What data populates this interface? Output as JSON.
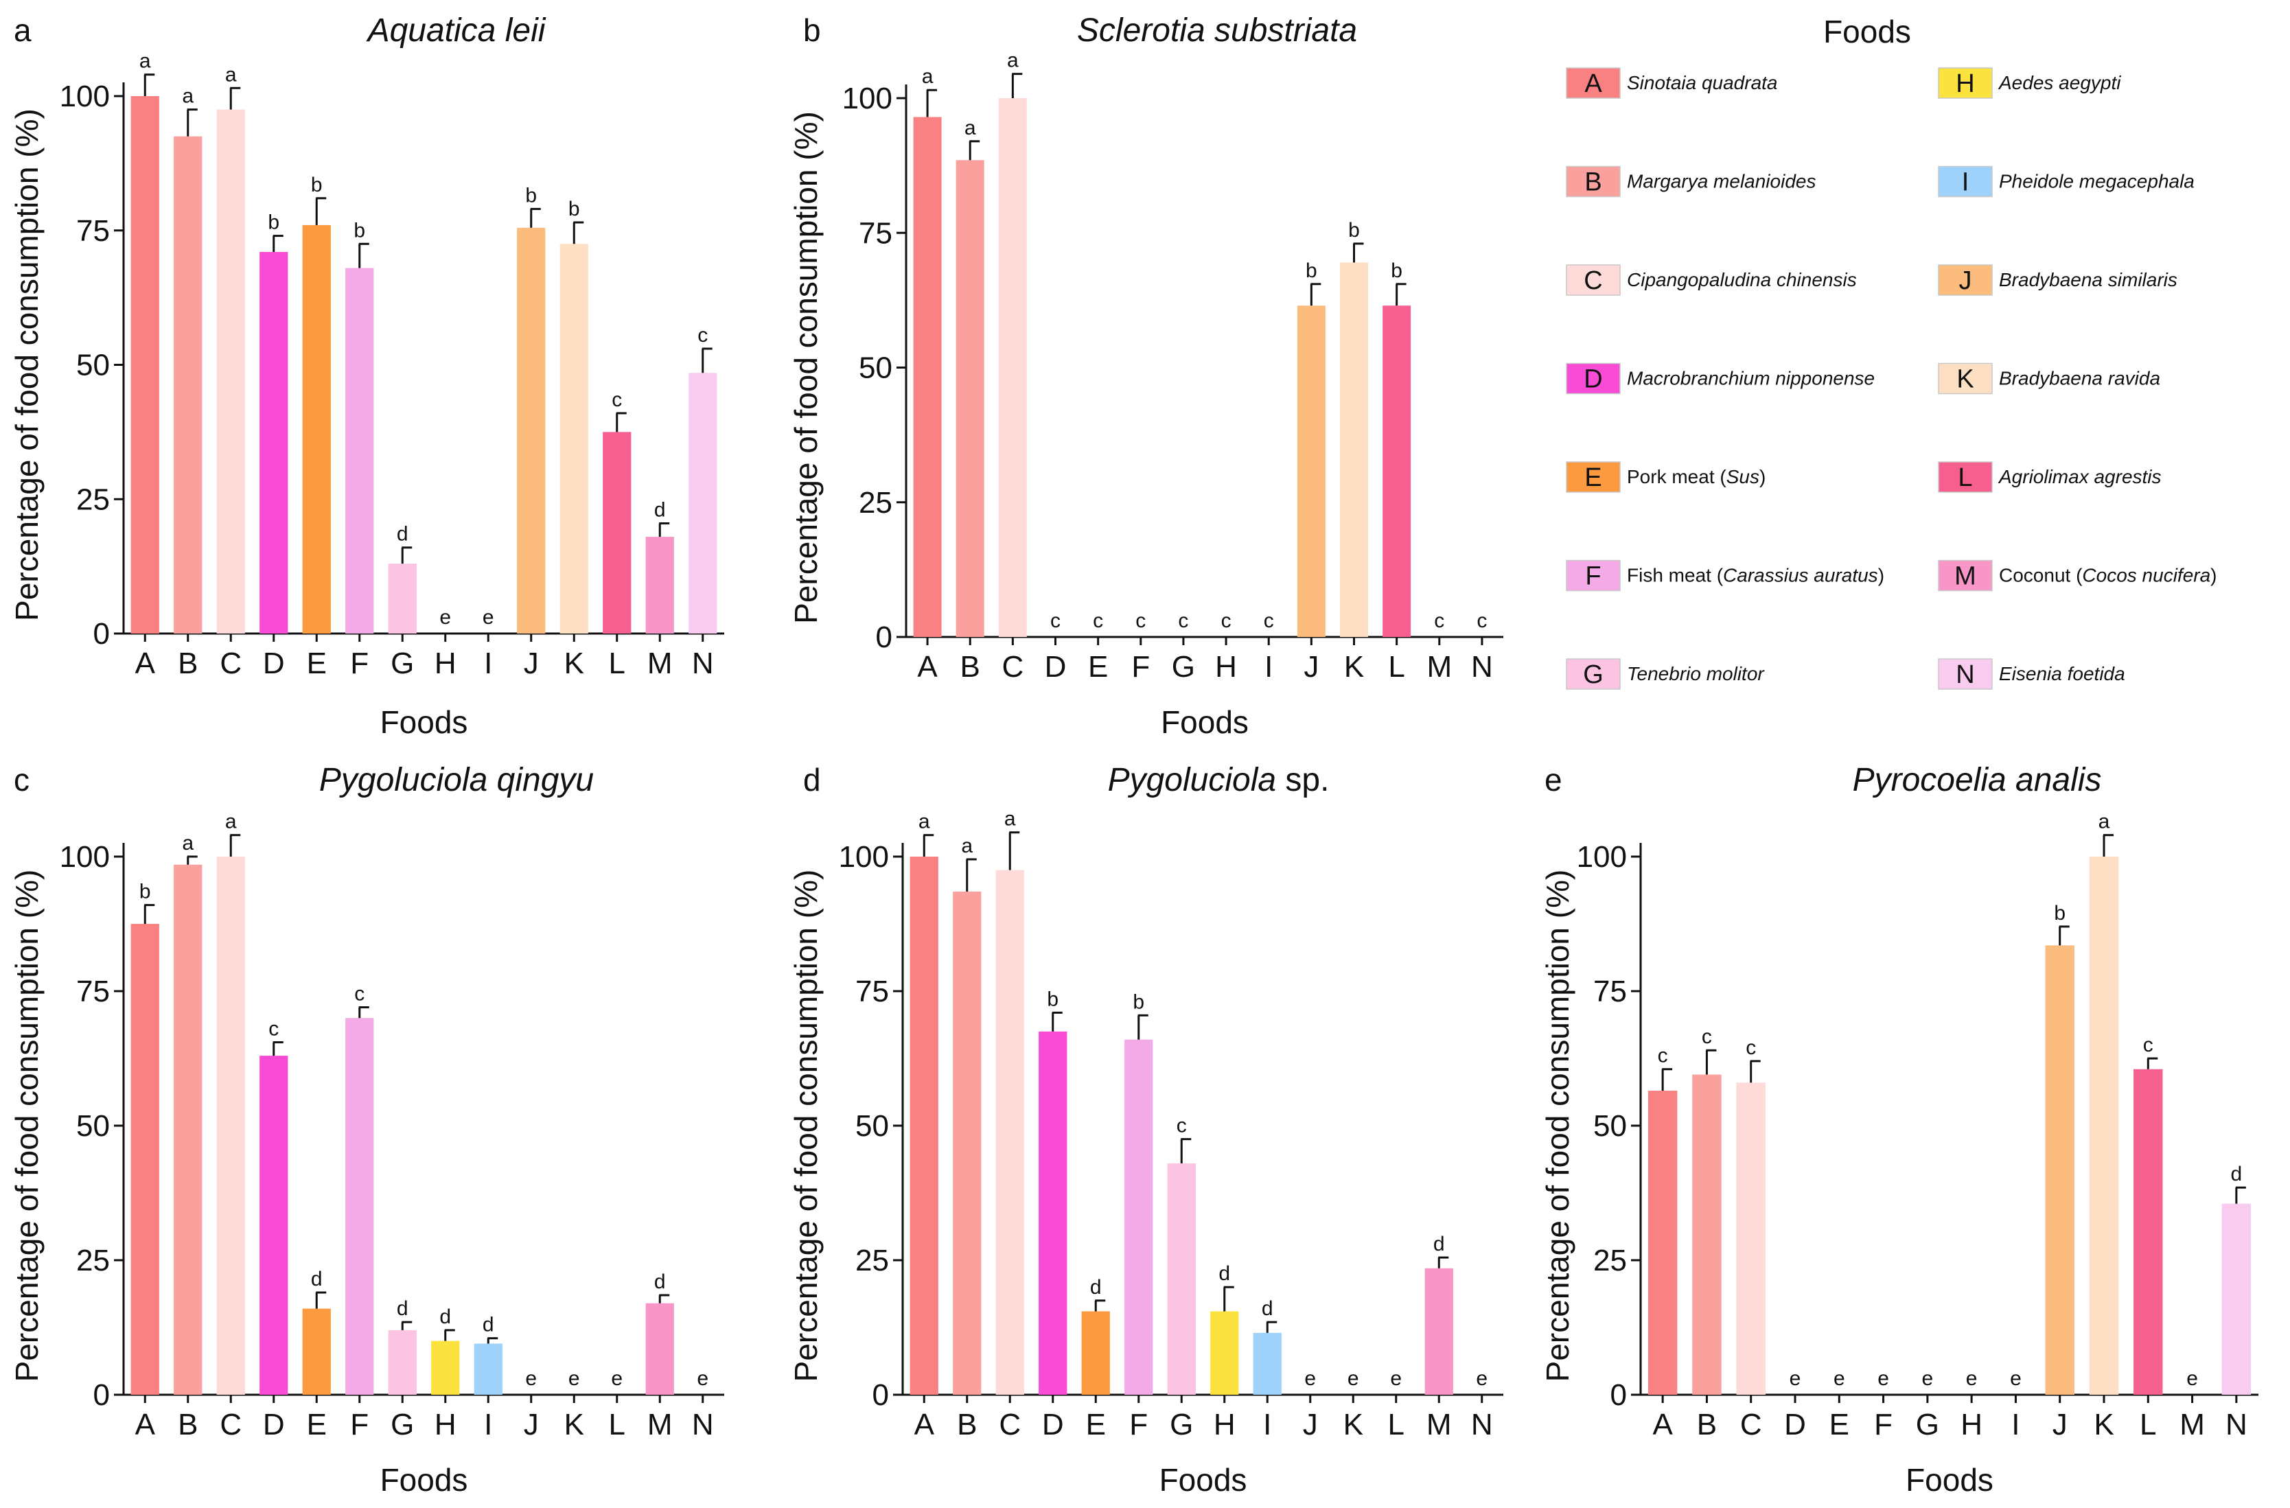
{
  "chart_data": [
    {
      "type": "bar",
      "panel": "a",
      "title": "Aquatica leii",
      "xlabel": "Foods",
      "ylabel": "Percentage of food consumption (%)",
      "ylim": [
        0,
        100
      ],
      "yticks": [
        "0",
        "25",
        "50",
        "75",
        "100"
      ],
      "categories": [
        "A",
        "B",
        "C",
        "D",
        "E",
        "F",
        "G",
        "H",
        "I",
        "J",
        "K",
        "L",
        "M",
        "N"
      ],
      "values": [
        100,
        92.5,
        97.5,
        71,
        76,
        68,
        13,
        0,
        0,
        75.5,
        72.5,
        37.5,
        18,
        48.5
      ],
      "errors": [
        4,
        5,
        4,
        3,
        5,
        4.5,
        3,
        0,
        0,
        3.5,
        4,
        3.5,
        2.5,
        4.5
      ],
      "letters": [
        "a",
        "a",
        "a",
        "b",
        "b",
        "b",
        "d",
        "e",
        "e",
        "b",
        "b",
        "c",
        "d",
        "c"
      ]
    },
    {
      "type": "bar",
      "panel": "b",
      "title": "Sclerotia substriata",
      "xlabel": "Foods",
      "ylabel": "Percentage of food consumption (%)",
      "ylim": [
        0,
        100
      ],
      "yticks": [
        "0",
        "25",
        "50",
        "75",
        "100"
      ],
      "categories": [
        "A",
        "B",
        "C",
        "D",
        "E",
        "F",
        "G",
        "H",
        "I",
        "J",
        "K",
        "L",
        "M",
        "N"
      ],
      "values": [
        96.5,
        88.5,
        100,
        0,
        0,
        0,
        0,
        0,
        0,
        61.5,
        69.5,
        61.5,
        0,
        0
      ],
      "errors": [
        5,
        3.5,
        4.5,
        0,
        0,
        0,
        0,
        0,
        0,
        4,
        3.5,
        4,
        0,
        0
      ],
      "letters": [
        "a",
        "a",
        "a",
        "c",
        "c",
        "c",
        "c",
        "c",
        "c",
        "b",
        "b",
        "b",
        "c",
        "c"
      ]
    },
    {
      "type": "bar",
      "panel": "c",
      "title": "Pygoluciola qingyu",
      "xlabel": "Foods",
      "ylabel": "Percentage of food consumption (%)",
      "ylim": [
        0,
        100
      ],
      "yticks": [
        "0",
        "25",
        "50",
        "75",
        "100"
      ],
      "categories": [
        "A",
        "B",
        "C",
        "D",
        "E",
        "F",
        "G",
        "H",
        "I",
        "J",
        "K",
        "L",
        "M",
        "N"
      ],
      "values": [
        87.5,
        98.5,
        100,
        63,
        16,
        70,
        12,
        10,
        9.5,
        0,
        0,
        0,
        17,
        0
      ],
      "errors": [
        3.5,
        1.5,
        4,
        2.5,
        3,
        2,
        1.5,
        2,
        1,
        0,
        0,
        0,
        1.5,
        0
      ],
      "letters": [
        "b",
        "a",
        "a",
        "c",
        "d",
        "c",
        "d",
        "d",
        "d",
        "e",
        "e",
        "e",
        "d",
        "e"
      ]
    },
    {
      "type": "bar",
      "panel": "d",
      "title": "Pygoluciola",
      "title_suffix": "sp.",
      "xlabel": "Foods",
      "ylabel": "Percentage of food consumption (%)",
      "ylim": [
        0,
        100
      ],
      "yticks": [
        "0",
        "25",
        "50",
        "75",
        "100"
      ],
      "categories": [
        "A",
        "B",
        "C",
        "D",
        "E",
        "F",
        "G",
        "H",
        "I",
        "J",
        "K",
        "L",
        "M",
        "N"
      ],
      "values": [
        100,
        93.5,
        97.5,
        67.5,
        15.5,
        66,
        43,
        15.5,
        11.5,
        0,
        0,
        0,
        23.5,
        0
      ],
      "errors": [
        4,
        6,
        7,
        3.5,
        2,
        4.5,
        4.5,
        4.5,
        2,
        0,
        0,
        0,
        2,
        0
      ],
      "letters": [
        "a",
        "a",
        "a",
        "b",
        "d",
        "b",
        "c",
        "d",
        "d",
        "e",
        "e",
        "e",
        "d",
        "e"
      ]
    },
    {
      "type": "bar",
      "panel": "e",
      "title": "Pyrocoelia analis",
      "xlabel": "Foods",
      "ylabel": "Percentage of food consumption (%)",
      "ylim": [
        0,
        100
      ],
      "yticks": [
        "0",
        "25",
        "50",
        "75",
        "100"
      ],
      "categories": [
        "A",
        "B",
        "C",
        "D",
        "E",
        "F",
        "G",
        "H",
        "I",
        "J",
        "K",
        "L",
        "M",
        "N"
      ],
      "values": [
        56.5,
        59.5,
        58,
        0,
        0,
        0,
        0,
        0,
        0,
        83.5,
        100,
        60.5,
        0,
        35.5
      ],
      "errors": [
        4,
        4.5,
        4,
        0,
        0,
        0,
        0,
        0,
        0,
        3.5,
        4,
        2,
        0,
        3
      ],
      "letters": [
        "c",
        "c",
        "c",
        "e",
        "e",
        "e",
        "e",
        "e",
        "e",
        "b",
        "a",
        "c",
        "e",
        "d"
      ]
    }
  ],
  "legend": {
    "title": "Foods",
    "items": [
      {
        "code": "A",
        "name": "Sinotaia quadrata",
        "italic": true,
        "color": "#f98181"
      },
      {
        "code": "B",
        "name": "Margarya melanioides",
        "italic": true,
        "color": "#fba19d"
      },
      {
        "code": "C",
        "name": "Cipangopaludina chinensis",
        "italic": true,
        "color": "#fedbd8"
      },
      {
        "code": "D",
        "name": "Macrobranchium nipponense",
        "italic": true,
        "color": "#f84bd6"
      },
      {
        "code": "E",
        "name_prefix": "Pork meat (",
        "name_italic": "Sus",
        "name_suffix": ")",
        "color": "#fb9a3e"
      },
      {
        "code": "F",
        "name_prefix": "Fish meat (",
        "name_italic": "Carassius auratus",
        "name_suffix": ")",
        "color": "#f4aae6"
      },
      {
        "code": "G",
        "name": "Tenebrio molitor",
        "italic": true,
        "color": "#fcc3e3"
      },
      {
        "code": "H",
        "name": "Aedes aegypti",
        "italic": true,
        "color": "#fbe23f"
      },
      {
        "code": "I",
        "name": "Pheidole megacephala",
        "italic": true,
        "color": "#9ed2fb"
      },
      {
        "code": "J",
        "name": "Bradybaena similaris",
        "italic": true,
        "color": "#fbbc7d"
      },
      {
        "code": "K",
        "name": "Bradybaena ravida",
        "italic": true,
        "color": "#fde0c3"
      },
      {
        "code": "L",
        "name": "Agriolimax agrestis",
        "italic": true,
        "color": "#f5608e"
      },
      {
        "code": "M",
        "name_prefix": "Coconut (",
        "name_italic": "Cocos nucifera",
        "name_suffix": ")",
        "color": "#f896c8"
      },
      {
        "code": "N",
        "name": "Eisenia foetida",
        "italic": true,
        "color": "#f9ccef"
      }
    ]
  }
}
